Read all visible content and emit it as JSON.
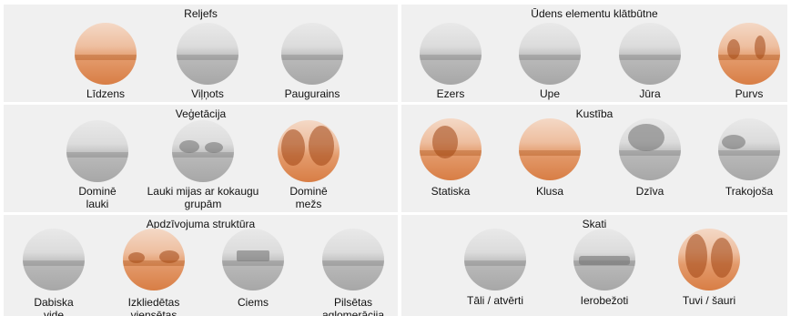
{
  "panels": {
    "reljefs": {
      "title": "Reljefs",
      "items": [
        {
          "label": "Līdzens",
          "tone": "orange"
        },
        {
          "label": "Viļņots",
          "tone": "grey"
        },
        {
          "label": "Paugurains",
          "tone": "grey"
        }
      ]
    },
    "udens": {
      "title": "Ūdens elementu klātbūtne",
      "items": [
        {
          "label": "Ezers",
          "tone": "grey"
        },
        {
          "label": "Upe",
          "tone": "grey"
        },
        {
          "label": "Jūra",
          "tone": "grey"
        },
        {
          "label": "Purvs",
          "tone": "orange"
        }
      ]
    },
    "vegetacija": {
      "title": "Veģetācija",
      "items": [
        {
          "label": "Dominē lauki",
          "tone": "grey"
        },
        {
          "label": "Lauki mijas ar kokaugu grupām",
          "tone": "grey"
        },
        {
          "label": "Dominē mežs",
          "tone": "orange"
        }
      ]
    },
    "kustiba": {
      "title": "Kustība",
      "items": [
        {
          "label": "Statiska",
          "tone": "orange"
        },
        {
          "label": "Klusa",
          "tone": "orange"
        },
        {
          "label": "Dzīva",
          "tone": "grey"
        },
        {
          "label": "Trakojoša",
          "tone": "grey"
        }
      ]
    },
    "apdzivojums": {
      "title": "Apdzīvojuma struktūra",
      "items": [
        {
          "label": "Dabiska vide",
          "tone": "grey"
        },
        {
          "label": "Izkliedētas viensētas",
          "tone": "orange"
        },
        {
          "label": "Ciems",
          "tone": "grey"
        },
        {
          "label": "Pilsētas aglomerācija",
          "tone": "grey"
        }
      ]
    },
    "skati": {
      "title": "Skati",
      "items": [
        {
          "label": "Tāli / atvērti",
          "tone": "grey"
        },
        {
          "label": "Ierobežoti",
          "tone": "grey"
        },
        {
          "label": "Tuvi / šauri",
          "tone": "orange"
        }
      ]
    }
  },
  "colors": {
    "panel_bg": "#f0f0f0",
    "accent_orange": "#d87e45",
    "grey_photo": "#a7a7a7"
  }
}
